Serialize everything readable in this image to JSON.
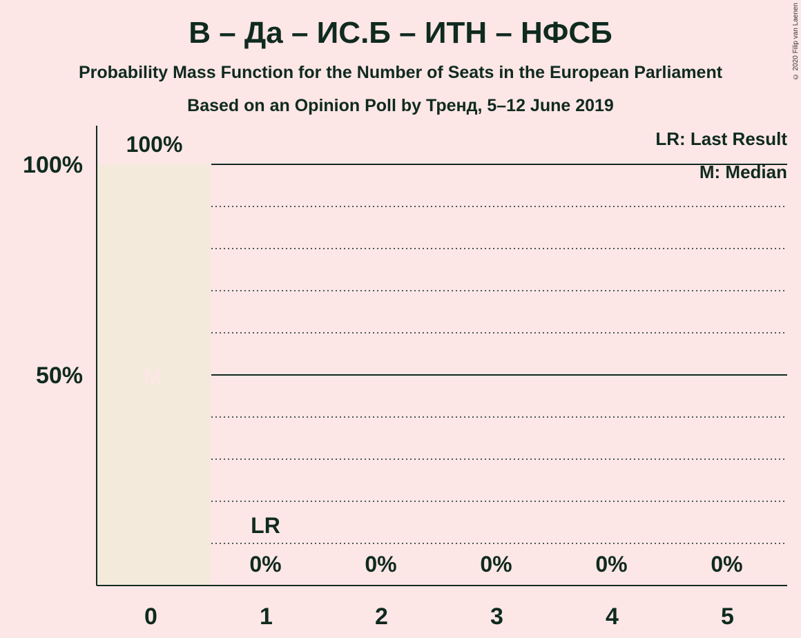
{
  "header": {
    "title": "В – Да – ИС.Б – ИТН – НФСБ",
    "subtitle_1": "Probability Mass Function for the Number of Seats in the European Parliament",
    "subtitle_2": "Based on an Opinion Poll by Тренд, 5–12 June 2019",
    "copyright": "© 2020 Filip van Laenen"
  },
  "legend": {
    "last_result": "LR: Last Result",
    "median": "M: Median"
  },
  "colors": {
    "background": "#fde6e6",
    "bar": "#f3eadb",
    "text": "#0f2a1f",
    "median_marker": "#fde6e6"
  },
  "chart_data": {
    "type": "bar",
    "categories": [
      "0",
      "1",
      "2",
      "3",
      "4",
      "5"
    ],
    "values": [
      100,
      0,
      0,
      0,
      0,
      0
    ],
    "value_labels": [
      "100%",
      "0%",
      "0%",
      "0%",
      "0%",
      "0%"
    ],
    "ylim": [
      0,
      100
    ],
    "y_ticks": [
      {
        "value": 50,
        "label": "50%"
      },
      {
        "value": 100,
        "label": "100%"
      }
    ],
    "minor_gridlines": [
      10,
      20,
      30,
      40,
      60,
      70,
      80,
      90
    ],
    "major_gridlines": [
      50,
      100
    ],
    "median_index": 0,
    "median_label": "M",
    "last_result_index": 1,
    "last_result_label": "LR"
  }
}
